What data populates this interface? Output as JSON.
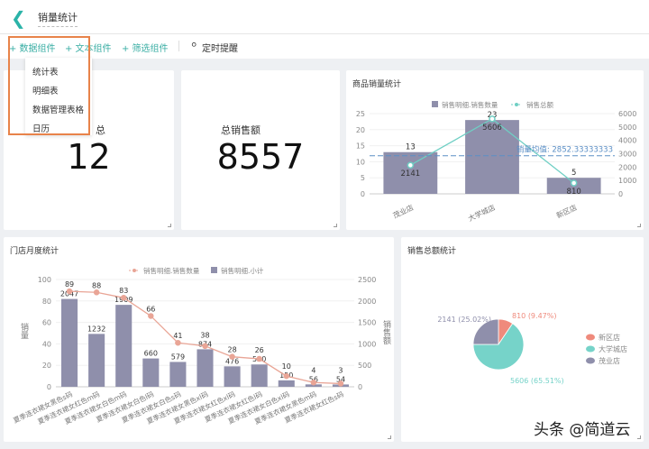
{
  "header": {
    "title": "销量统计",
    "back_icon": "chevron-left-icon"
  },
  "toolbar": {
    "data_component": "+ 数据组件",
    "text_component": "+ 文本组件",
    "filter_component": "+ 筛选组件",
    "reminder": "定时提醒"
  },
  "dropdown": {
    "items": [
      "统计表",
      "明细表",
      "数据管理表格",
      "日历"
    ]
  },
  "kpi1": {
    "label": "总",
    "value": "12"
  },
  "kpi2": {
    "label": "总销售额",
    "value": "8557"
  },
  "colors": {
    "accent": "#3aaea4",
    "bar": "#8f8fab",
    "line_teal": "#6fcfc4",
    "line_red": "#e9a596",
    "highlight": "#e8834a",
    "pie": [
      "#ef8a7c",
      "#76d3c9",
      "#8f8fab"
    ]
  },
  "watermark": "头条 @简道云",
  "chart_data": [
    {
      "type": "bar",
      "title": "商品销量统计",
      "categories": [
        "茂业店",
        "大学城店",
        "新区店"
      ],
      "series": [
        {
          "name": "销售明细.销售数量",
          "type": "bar",
          "axis": "left",
          "values": [
            13,
            23,
            5
          ]
        },
        {
          "name": "销售总额",
          "type": "line",
          "axis": "right",
          "values": [
            2141,
            5606,
            810
          ]
        }
      ],
      "ylim": [
        0,
        25
      ],
      "y2lim": [
        0,
        6000
      ],
      "yticks": [
        0,
        5,
        10,
        15,
        20,
        25
      ],
      "y2ticks": [
        0,
        1000,
        2000,
        3000,
        4000,
        5000,
        6000
      ],
      "reference_line": {
        "label": "销量均值: 2852.33333333",
        "value": 2852.33333333,
        "axis": "right"
      },
      "legend": "top"
    },
    {
      "type": "bar",
      "title": "门店月度统计",
      "categories": [
        "夏季连衣裙女黑色s码",
        "夏季连衣裙女红色m码",
        "夏季连衣裙女白色m码",
        "夏季连衣裙女白色l码",
        "夏季连衣裙女白色s码",
        "夏季连衣裙女黑色xl码",
        "夏季连衣裙女红色xl码",
        "夏季连衣裙女红色l码",
        "夏季连衣裙女白色xl码",
        "夏季连衣裙女黑色m码",
        "夏季连衣裙女红色s码"
      ],
      "series": [
        {
          "name": "销售明细.销售数量",
          "type": "line",
          "axis": "left",
          "values": [
            89,
            88,
            83,
            66,
            41,
            38,
            28,
            26,
            10,
            4,
            3
          ]
        },
        {
          "name": "销售明细.小计",
          "type": "bar",
          "axis": "right",
          "values": [
            2047,
            1232,
            1909,
            660,
            579,
            874,
            476,
            520,
            150,
            56,
            54
          ]
        }
      ],
      "ylabel": "销量",
      "y2label": "销售额",
      "ylim": [
        0,
        100
      ],
      "y2lim": [
        0,
        2500
      ],
      "yticks": [
        0,
        20,
        40,
        60,
        80,
        100
      ],
      "y2ticks": [
        0,
        500,
        1000,
        1500,
        2000,
        2500
      ],
      "legend": "top"
    },
    {
      "type": "pie",
      "title": "销售总额统计",
      "labels": [
        "新区店",
        "大学城店",
        "茂业店"
      ],
      "values": [
        810,
        5606,
        2141
      ],
      "value_labels": [
        "810 (9.47%)",
        "5606 (65.51%)",
        "2141 (25.02%)"
      ],
      "legend": "right"
    }
  ]
}
